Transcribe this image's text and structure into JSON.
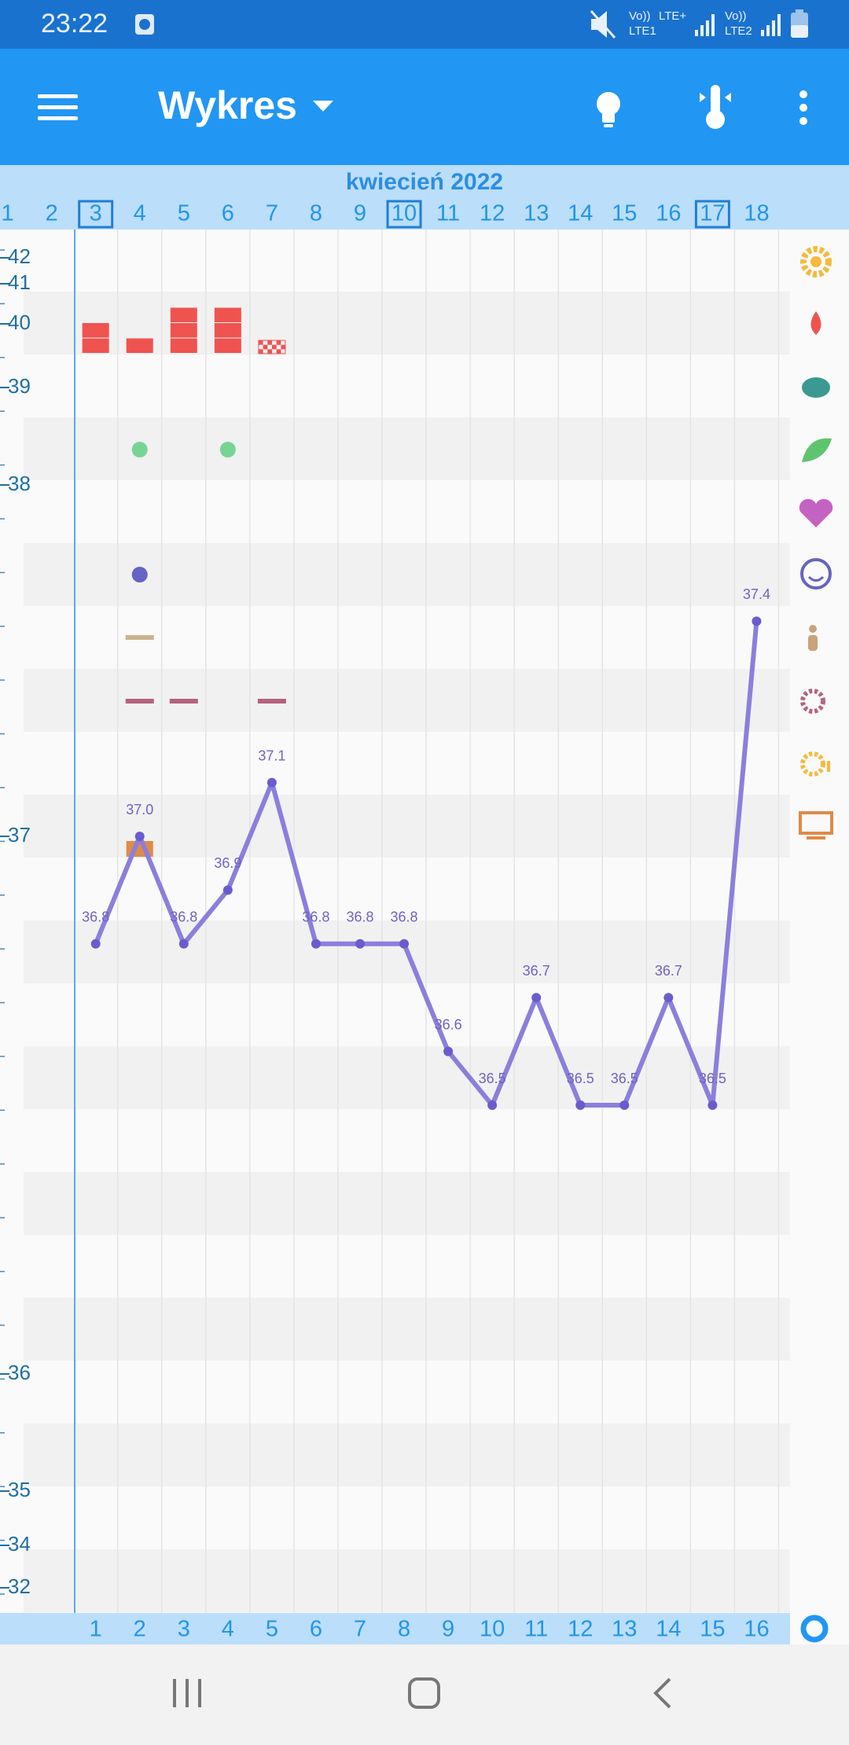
{
  "status_bar": {
    "time": "23:22",
    "network": [
      "Vo))",
      "LTE+",
      "LTE1",
      "Vo))",
      "LTE2"
    ]
  },
  "toolbar": {
    "title": "Wykres"
  },
  "chart_data": {
    "type": "line",
    "title": "kwiecień 2022",
    "dates": [
      1,
      2,
      3,
      4,
      5,
      6,
      7,
      8,
      9,
      10,
      11,
      12,
      13,
      14,
      15,
      16,
      17,
      18
    ],
    "dates_boxed": [
      false,
      false,
      true,
      false,
      false,
      false,
      false,
      false,
      false,
      true,
      false,
      false,
      false,
      false,
      false,
      false,
      true,
      false
    ],
    "yticks": [
      42,
      41,
      40,
      39,
      38,
      37,
      36,
      35,
      34,
      32
    ],
    "categories": [
      1,
      2,
      3,
      4,
      5,
      6,
      7,
      8,
      9,
      10,
      11,
      12,
      13,
      14,
      15,
      16
    ],
    "values": [
      36.8,
      37.0,
      36.8,
      36.9,
      37.1,
      36.8,
      36.8,
      36.8,
      36.6,
      36.5,
      36.7,
      36.5,
      36.5,
      36.7,
      36.5,
      37.4
    ],
    "value_labels": [
      "36.8",
      "37.0",
      "36.8",
      "36.9",
      "37.1",
      "36.8",
      "36.8",
      "36.8",
      "36.6",
      "36.5",
      "36.7",
      "36.5",
      "36.5",
      "36.7",
      "36.5",
      "37.4"
    ],
    "color": "#8b7fdc",
    "grid": true
  }
}
